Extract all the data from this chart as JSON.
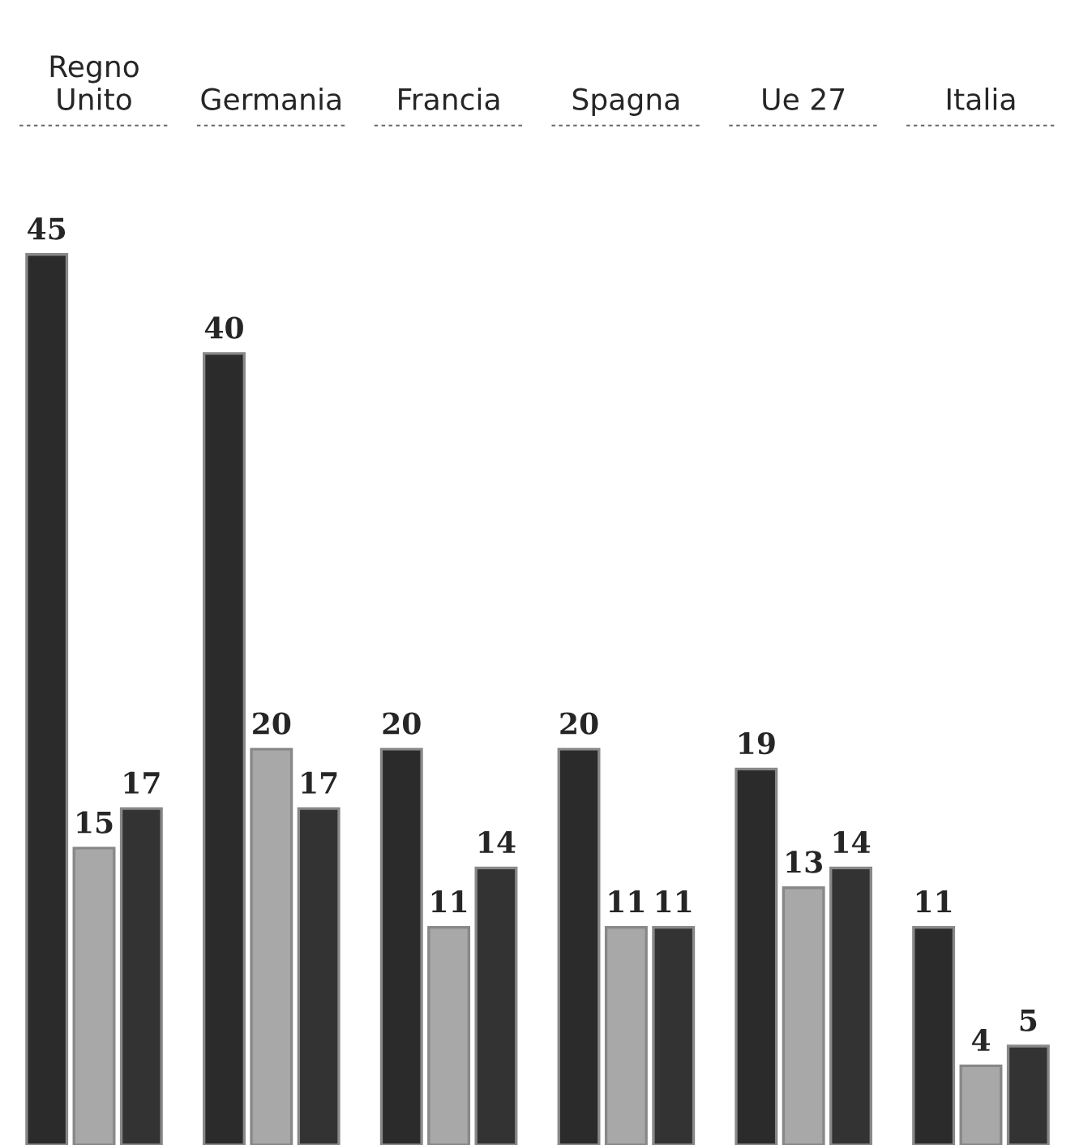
{
  "chart_data": {
    "type": "bar",
    "categories": [
      "Regno\nUnito",
      "Germania",
      "Francia",
      "Spagna",
      "Ue 27",
      "Italia"
    ],
    "series": [
      {
        "color": "#2b2b2b",
        "values": [
          45,
          40,
          20,
          20,
          19,
          11
        ]
      },
      {
        "color": "#a8a8a8",
        "values": [
          15,
          20,
          11,
          11,
          13,
          4
        ]
      },
      {
        "color": "#333333",
        "values": [
          17,
          17,
          14,
          11,
          14,
          5
        ]
      }
    ],
    "data_labels": true
  }
}
